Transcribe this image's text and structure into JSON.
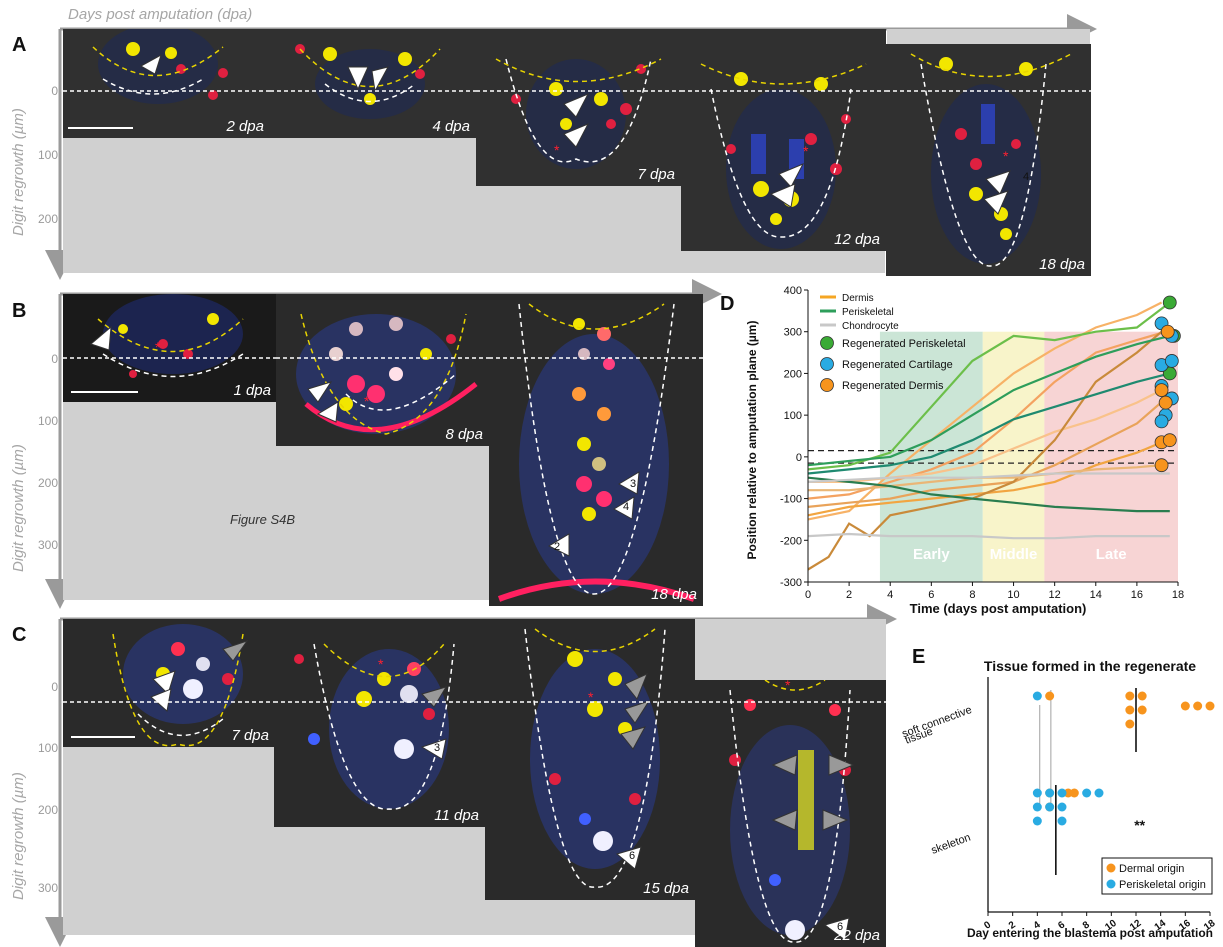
{
  "header": {
    "time_axis_label": "Days post amputation (dpa)"
  },
  "panel_A": {
    "label": "A",
    "y_axis_label": "Digit regrowth (µm)",
    "y_ticks": [
      "0",
      "100",
      "200"
    ],
    "frames": [
      "2 dpa",
      "4 dpa",
      "7 dpa",
      "12 dpa",
      "18 dpa"
    ],
    "arrow_labels": [
      "4"
    ]
  },
  "panel_B": {
    "label": "B",
    "y_axis_label": "Digit regrowth (µm)",
    "y_ticks": [
      "0",
      "100",
      "200",
      "300"
    ],
    "frames": [
      "1 dpa",
      "8 dpa",
      "18 dpa"
    ],
    "arrow_labels": [
      "3",
      "4",
      "2"
    ],
    "callout": "Figure S4B"
  },
  "panel_C": {
    "label": "C",
    "y_axis_label": "Digit regrowth (µm)",
    "y_ticks": [
      "0",
      "100",
      "200",
      "300"
    ],
    "frames": [
      "7 dpa",
      "11 dpa",
      "15 dpa",
      "22 dpa"
    ],
    "arrow_labels": [
      "3",
      "6",
      "6"
    ]
  },
  "panel_D": {
    "label": "D",
    "legend": [
      "Dermis",
      "Periskeletal",
      "Chondrocyte",
      "Regenerated Periskeletal",
      "Regenerated Cartilage",
      "Regenerated Dermis"
    ],
    "phases": [
      "Early",
      "Middle",
      "Late"
    ],
    "colors": {
      "dermis": "#f5a623",
      "periskeletal": "#2e9e5b",
      "chondrocyte": "#c8c8c8",
      "reg_peri": "#3aaa35",
      "reg_cart": "#29abe2",
      "reg_derm": "#f7941d"
    }
  },
  "panel_E": {
    "label": "E",
    "legend": [
      "Dermal origin",
      "Periskeletal origin"
    ],
    "significance": "**"
  },
  "chart_data": [
    {
      "type": "line",
      "xlabel": "Time (days post amputation)",
      "ylabel": "Position relative to amputation plane (µm)",
      "xlim": [
        0,
        18
      ],
      "ylim": [
        -300,
        400
      ],
      "x_ticks": [
        "0",
        "2",
        "4",
        "6",
        "8",
        "10",
        "12",
        "14",
        "16",
        "18"
      ],
      "y_ticks": [
        "-300",
        "-200",
        "-100",
        "0",
        "100",
        "200",
        "300",
        "400"
      ],
      "phase_bands": [
        {
          "name": "Early",
          "x": [
            3.5,
            8.5
          ]
        },
        {
          "name": "Middle",
          "x": [
            8.5,
            11.5
          ]
        },
        {
          "name": "Late",
          "x": [
            11.5,
            18
          ]
        }
      ],
      "reference_lines": [
        15,
        -15
      ],
      "series": [
        {
          "name": "Dermis",
          "x": [
            0,
            2,
            4,
            6,
            8,
            10,
            12,
            14,
            16,
            17.2
          ],
          "values": [
            -150,
            -130,
            -40,
            40,
            120,
            200,
            260,
            310,
            340,
            370
          ]
        },
        {
          "name": "Dermis",
          "x": [
            0,
            2,
            4,
            6,
            8,
            10,
            12,
            14,
            16,
            17.4
          ],
          "values": [
            -100,
            -90,
            -60,
            -30,
            10,
            90,
            180,
            250,
            280,
            300
          ]
        },
        {
          "name": "Dermis",
          "x": [
            0,
            2,
            4,
            6,
            8,
            10,
            12,
            14,
            16,
            17.2
          ],
          "values": [
            -60,
            -60,
            -50,
            -40,
            -20,
            20,
            60,
            90,
            130,
            160
          ]
        },
        {
          "name": "Dermis",
          "x": [
            0,
            2,
            4,
            6,
            8,
            10,
            12,
            14,
            16,
            17.4
          ],
          "values": [
            -120,
            -110,
            -100,
            -80,
            -70,
            -60,
            -20,
            30,
            80,
            140
          ]
        },
        {
          "name": "Dermis",
          "x": [
            0,
            2,
            4,
            6,
            8,
            10,
            12,
            14,
            16,
            17.2
          ],
          "values": [
            -140,
            -120,
            -110,
            -100,
            -90,
            -80,
            -60,
            -20,
            10,
            35
          ]
        },
        {
          "name": "Dermis",
          "x": [
            0,
            1,
            2,
            3,
            4,
            6,
            8,
            10,
            12,
            14,
            16,
            17.2
          ],
          "values": [
            -270,
            -240,
            -160,
            -190,
            -140,
            -120,
            -100,
            -60,
            40,
            180,
            250,
            300
          ]
        },
        {
          "name": "Dermis",
          "x": [
            0,
            2,
            4,
            6,
            8,
            10,
            12,
            14,
            16,
            17.2
          ],
          "values": [
            -80,
            -80,
            -70,
            -60,
            -50,
            -50,
            -40,
            -30,
            -25,
            -20
          ]
        },
        {
          "name": "Periskeletal",
          "x": [
            0,
            2,
            4,
            6,
            8,
            10,
            12,
            14,
            16,
            17.6
          ],
          "values": [
            -30,
            -20,
            10,
            120,
            230,
            290,
            280,
            300,
            310,
            370
          ]
        },
        {
          "name": "Periskeletal",
          "x": [
            0,
            2,
            4,
            6,
            8,
            10,
            12,
            14,
            16,
            17.6
          ],
          "values": [
            -20,
            -10,
            0,
            40,
            100,
            160,
            200,
            240,
            270,
            290
          ]
        },
        {
          "name": "Periskeletal",
          "x": [
            0,
            2,
            4,
            6,
            8,
            10,
            12,
            14,
            16,
            17.6
          ],
          "values": [
            -40,
            -30,
            -20,
            0,
            40,
            90,
            120,
            150,
            180,
            200
          ]
        },
        {
          "name": "Periskeletal",
          "x": [
            0,
            2,
            4,
            6,
            8,
            10,
            12,
            14,
            16,
            17.6
          ],
          "values": [
            -50,
            -60,
            -70,
            -90,
            -100,
            -110,
            -120,
            -125,
            -130,
            -130
          ]
        },
        {
          "name": "Chondrocyte",
          "x": [
            0,
            2,
            4,
            6,
            8,
            10,
            12,
            14,
            16,
            17.6
          ],
          "values": [
            -190,
            -185,
            -190,
            -190,
            -190,
            -195,
            -195,
            -190,
            -190,
            -190
          ]
        },
        {
          "name": "Chondrocyte",
          "x": [
            0,
            2,
            4,
            6,
            8,
            10,
            12,
            14,
            16,
            17.6
          ],
          "values": [
            -60,
            -55,
            -50,
            -50,
            -50,
            -45,
            -40,
            -40,
            -40,
            -40
          ]
        }
      ],
      "points": [
        {
          "name": "Regenerated Periskeletal",
          "x": [
            17.6,
            17.8,
            17.6
          ],
          "y": [
            370,
            290,
            200
          ]
        },
        {
          "name": "Regenerated Cartilage",
          "x": [
            17.2,
            17.7,
            17.2,
            17.7,
            17.2,
            17.7,
            17.4,
            17.2
          ],
          "y": [
            320,
            290,
            220,
            230,
            170,
            140,
            100,
            85
          ]
        },
        {
          "name": "Regenerated Dermis",
          "x": [
            17.5,
            17.2,
            17.4,
            17.2,
            17.6,
            17.2
          ],
          "y": [
            300,
            160,
            130,
            35,
            40,
            -20
          ]
        }
      ]
    },
    {
      "type": "scatter",
      "title": "Tissue formed in the regenerate",
      "xlabel": "Day entering the blastema post amputation",
      "categories": [
        "soft connective tissue",
        "skeleton"
      ],
      "xlim": [
        0,
        18
      ],
      "x_ticks": [
        "0",
        "2",
        "4",
        "6",
        "8",
        "10",
        "12",
        "14",
        "16",
        "18"
      ],
      "series": [
        {
          "name": "Dermal origin",
          "points": [
            [
              5,
              "soft connective tissue"
            ],
            [
              11.5,
              "soft connective tissue"
            ],
            [
              11.5,
              "soft connective tissue"
            ],
            [
              11.5,
              "soft connective tissue"
            ],
            [
              12.5,
              "soft connective tissue"
            ],
            [
              12.5,
              "soft connective tissue"
            ],
            [
              16,
              "soft connective tissue"
            ],
            [
              17,
              "soft connective tissue"
            ],
            [
              18,
              "soft connective tissue"
            ],
            [
              5,
              "skeleton"
            ],
            [
              5,
              "skeleton"
            ],
            [
              6.5,
              "skeleton"
            ],
            [
              7,
              "skeleton"
            ]
          ]
        },
        {
          "name": "Periskeletal origin",
          "points": [
            [
              4,
              "soft connective tissue"
            ],
            [
              4,
              "skeleton"
            ],
            [
              4,
              "skeleton"
            ],
            [
              4,
              "skeleton"
            ],
            [
              5,
              "skeleton"
            ],
            [
              5,
              "skeleton"
            ],
            [
              6,
              "skeleton"
            ],
            [
              6,
              "skeleton"
            ],
            [
              6,
              "skeleton"
            ],
            [
              8,
              "skeleton"
            ],
            [
              9,
              "skeleton"
            ]
          ]
        }
      ],
      "medians": [
        {
          "category": "soft connective tissue",
          "x": 12
        },
        {
          "category": "skeleton",
          "x": 5.5
        }
      ]
    }
  ]
}
